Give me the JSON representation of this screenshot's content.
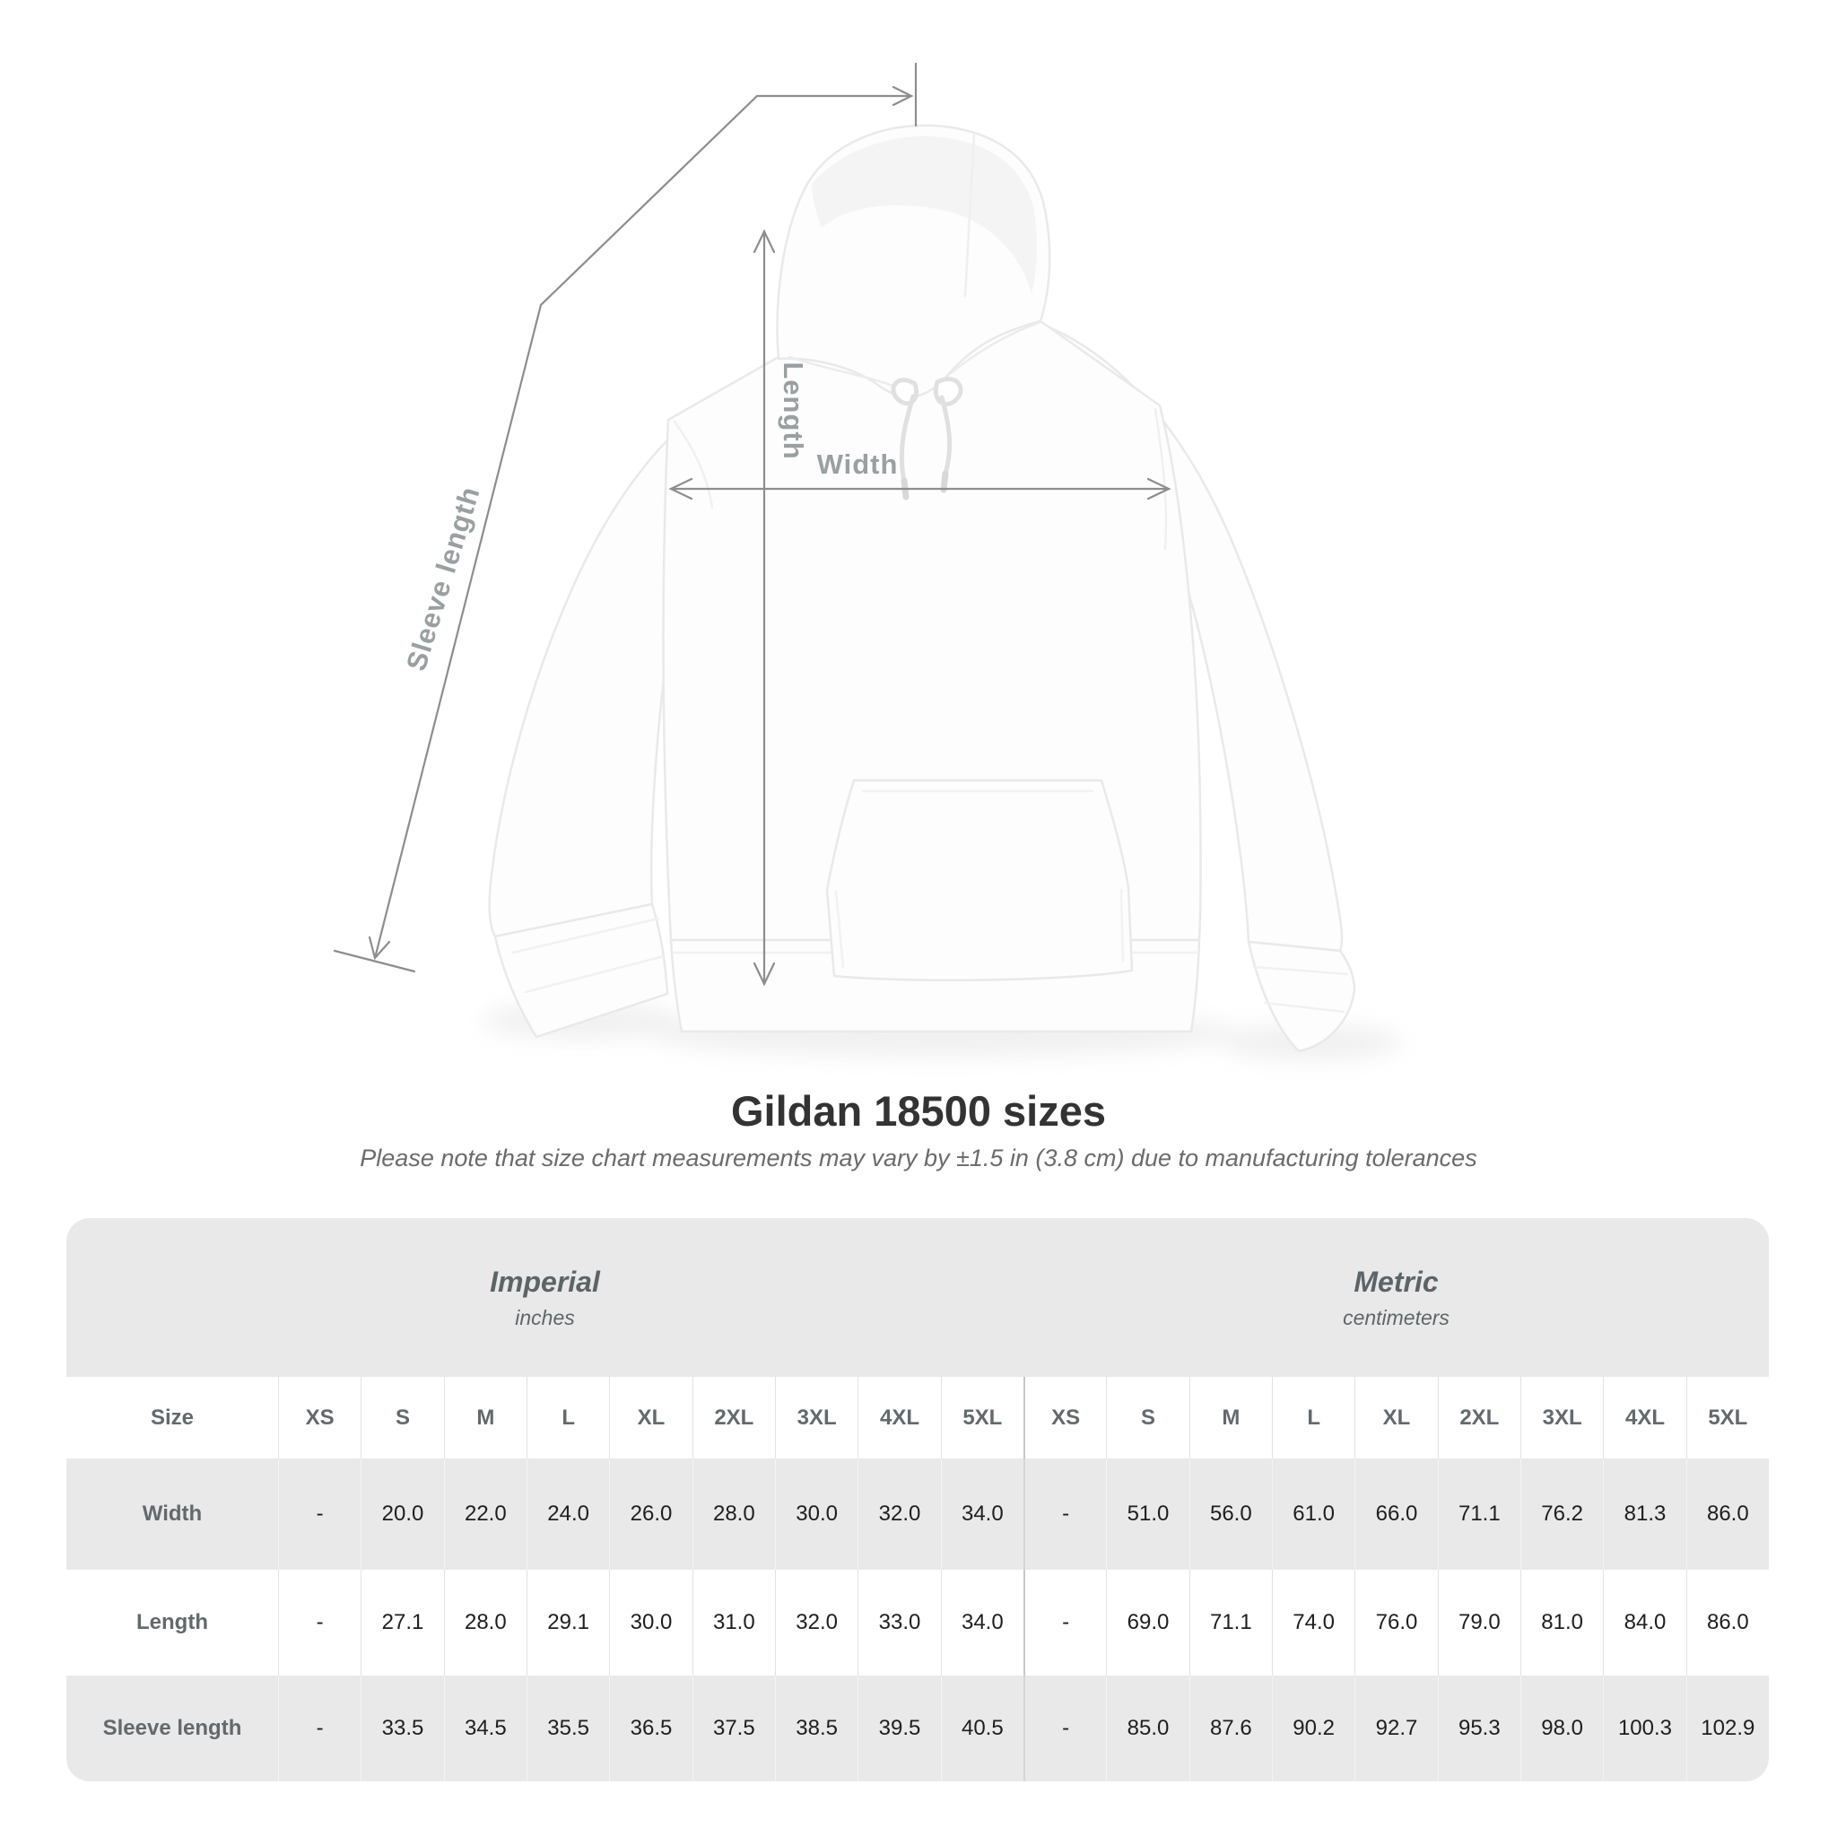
{
  "diagram": {
    "labels": {
      "sleeve": "Sleeve length",
      "length": "Length",
      "width": "Width"
    },
    "garment": "white hooded sweatshirt"
  },
  "heading": {
    "title": "Gildan 18500 sizes",
    "subtitle": "Please note that size chart measurements may vary by ±1.5 in (3.8 cm) due to manufacturing tolerances"
  },
  "table": {
    "size_header": "Size",
    "unit_groups": [
      {
        "name": "Imperial",
        "unit": "inches"
      },
      {
        "name": "Metric",
        "unit": "centimeters"
      }
    ],
    "sizes": [
      "XS",
      "S",
      "M",
      "L",
      "XL",
      "2XL",
      "3XL",
      "4XL",
      "5XL"
    ],
    "rows": [
      {
        "label": "Width",
        "imperial": [
          "-",
          "20.0",
          "22.0",
          "24.0",
          "26.0",
          "28.0",
          "30.0",
          "32.0",
          "34.0"
        ],
        "metric": [
          "-",
          "51.0",
          "56.0",
          "61.0",
          "66.0",
          "71.1",
          "76.2",
          "81.3",
          "86.0"
        ]
      },
      {
        "label": "Length",
        "imperial": [
          "-",
          "27.1",
          "28.0",
          "29.1",
          "30.0",
          "31.0",
          "32.0",
          "33.0",
          "34.0"
        ],
        "metric": [
          "-",
          "69.0",
          "71.1",
          "74.0",
          "76.0",
          "79.0",
          "81.0",
          "84.0",
          "86.0"
        ]
      },
      {
        "label": "Sleeve length",
        "imperial": [
          "-",
          "33.5",
          "34.5",
          "35.5",
          "36.5",
          "37.5",
          "38.5",
          "39.5",
          "40.5"
        ],
        "metric": [
          "-",
          "85.0",
          "87.6",
          "90.2",
          "92.7",
          "95.3",
          "98.0",
          "100.3",
          "102.9"
        ]
      }
    ]
  },
  "colors": {
    "row_stripe": "#e9e9e9",
    "header_text": "#63696c",
    "data_text": "#1e1e1e",
    "measure_line": "#8d8d8d",
    "measure_label": "#9aa0a2",
    "title_text": "#333333",
    "subtitle_text": "#6b6b6b"
  }
}
